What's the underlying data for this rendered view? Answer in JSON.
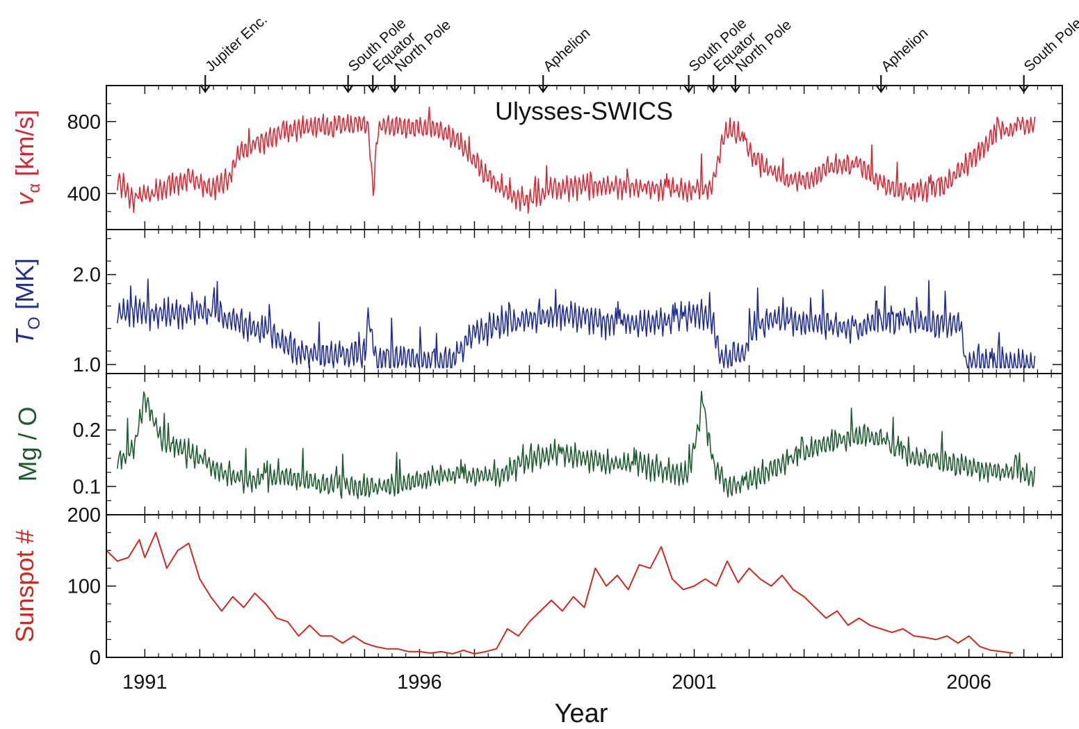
{
  "figure": {
    "instrument_label": "Ulysses-SWICS",
    "xlabel": "Year",
    "x_ticks": [
      1991,
      1996,
      2001,
      2006
    ],
    "x_range": [
      1990.3,
      2007.7
    ],
    "colors": {
      "alpha_speed": "#d42a35",
      "oxygen_temperature": "#1f2d8f",
      "mg_o_ratio": "#1e5a30",
      "sunspot": "#cc2a1e",
      "axes": "#111111"
    },
    "events": [
      {
        "label": "Jupiter Enc.",
        "year": 1992.1
      },
      {
        "label": "South Pole",
        "year": 1994.7
      },
      {
        "label": "Equator",
        "year": 1995.15
      },
      {
        "label": "North Pole",
        "year": 1995.55
      },
      {
        "label": "Aphelion",
        "year": 1998.25
      },
      {
        "label": "South Pole",
        "year": 2000.9
      },
      {
        "label": "Equator",
        "year": 2001.35
      },
      {
        "label": "North Pole",
        "year": 2001.75
      },
      {
        "label": "Aphelion",
        "year": 2004.4
      },
      {
        "label": "South Pole",
        "year": 2007.0
      }
    ]
  },
  "chart_data": [
    {
      "type": "line",
      "ylabel_main": "v",
      "ylabel_sub": "α",
      "ylabel_unit": " [km/s]",
      "ylim": [
        200,
        1000
      ],
      "y_ticks": [
        400,
        800
      ],
      "color": "#d42a35",
      "noise": [
        60,
        100
      ],
      "x": [
        1990.5,
        1990.8,
        1991.5,
        1991.8,
        1992.0,
        1992.2,
        1992.5,
        1992.7,
        1993.2,
        1993.8,
        1994.5,
        1995.0,
        1995.08,
        1995.15,
        1995.25,
        1995.35,
        1995.5,
        1996.0,
        1996.3,
        1996.7,
        1997.1,
        1997.6,
        1997.9,
        1998.1,
        1998.4,
        1999.0,
        1999.8,
        2000.5,
        2001.0,
        2001.3,
        2001.55,
        2001.65,
        2001.9,
        2002.1,
        2002.5,
        2003.0,
        2003.5,
        2004.0,
        2004.5,
        2005.0,
        2005.5,
        2006.0,
        2006.5,
        2007.0,
        2007.2
      ],
      "y": [
        480,
        360,
        450,
        480,
        460,
        420,
        470,
        620,
        700,
        760,
        780,
        790,
        760,
        400,
        760,
        790,
        780,
        760,
        760,
        700,
        540,
        400,
        360,
        370,
        430,
        440,
        440,
        430,
        420,
        430,
        720,
        760,
        700,
        600,
        500,
        460,
        550,
        560,
        430,
        410,
        430,
        580,
        740,
        770,
        780
      ]
    },
    {
      "type": "line",
      "ylabel_main": "T",
      "ylabel_sub": "O",
      "ylabel_unit": " [MK]",
      "ylim": [
        0.9,
        2.5
      ],
      "y_ticks": [
        1.0,
        2.0
      ],
      "color": "#1f2d8f",
      "noise": [
        0.15,
        0.3
      ],
      "x": [
        1990.5,
        1991.0,
        1991.5,
        1992.0,
        1992.3,
        1992.8,
        1993.3,
        1993.8,
        1994.1,
        1994.5,
        1995.0,
        1995.08,
        1995.2,
        1995.5,
        1996.0,
        1996.3,
        1996.6,
        1997.0,
        1997.5,
        1998.0,
        1998.6,
        1999.2,
        2000.0,
        2000.6,
        2001.0,
        2001.3,
        2001.5,
        2001.9,
        2002.1,
        2002.5,
        2003.2,
        2003.8,
        2004.3,
        2004.8,
        2005.3,
        2005.85,
        2005.95,
        2006.5,
        2007.2
      ],
      "y": [
        1.55,
        1.6,
        1.55,
        1.6,
        1.55,
        1.45,
        1.35,
        1.15,
        1.1,
        1.11,
        1.12,
        1.55,
        1.05,
        1.06,
        1.05,
        1.02,
        1.05,
        1.35,
        1.45,
        1.5,
        1.55,
        1.5,
        1.45,
        1.5,
        1.55,
        1.55,
        1.05,
        1.1,
        1.45,
        1.5,
        1.45,
        1.4,
        1.45,
        1.5,
        1.45,
        1.45,
        1.0,
        1.02,
        1.0
      ]
    },
    {
      "type": "line",
      "ylabel_main": "Mg / O",
      "ylim": [
        0.05,
        0.3
      ],
      "y_ticks": [
        0.1,
        0.2
      ],
      "color": "#1e5a30",
      "noise": [
        0.02,
        0.04
      ],
      "x": [
        1990.5,
        1990.8,
        1991.0,
        1991.3,
        1992.0,
        1992.5,
        1993.0,
        1993.5,
        1994.0,
        1994.5,
        1995.0,
        1995.5,
        1996.0,
        1996.5,
        1997.0,
        1997.5,
        1998.0,
        1998.5,
        1999.0,
        1999.5,
        2000.0,
        2000.5,
        2000.9,
        2001.15,
        2001.35,
        2001.6,
        2001.85,
        2002.2,
        2002.8,
        2003.5,
        2004.2,
        2005.0,
        2005.7,
        2006.2,
        2007.2
      ],
      "y": [
        0.14,
        0.17,
        0.26,
        0.18,
        0.15,
        0.12,
        0.11,
        0.12,
        0.11,
        0.1,
        0.1,
        0.1,
        0.11,
        0.12,
        0.12,
        0.12,
        0.15,
        0.16,
        0.15,
        0.14,
        0.14,
        0.13,
        0.12,
        0.25,
        0.14,
        0.1,
        0.1,
        0.12,
        0.15,
        0.18,
        0.19,
        0.15,
        0.14,
        0.13,
        0.12
      ]
    },
    {
      "type": "line",
      "ylabel_main": "Sunspot #",
      "ylim": [
        0,
        200
      ],
      "y_ticks": [
        0,
        100,
        200
      ],
      "color": "#cc2a1e",
      "noise": [
        0,
        0
      ],
      "x": [
        1990.3,
        1990.5,
        1990.7,
        1990.9,
        1991.0,
        1991.2,
        1991.4,
        1991.6,
        1991.8,
        1992.0,
        1992.2,
        1992.4,
        1992.6,
        1992.8,
        1993.0,
        1993.2,
        1993.4,
        1993.6,
        1993.8,
        1994.0,
        1994.2,
        1994.4,
        1994.6,
        1994.8,
        1995.0,
        1995.2,
        1995.4,
        1995.6,
        1995.8,
        1996.0,
        1996.2,
        1996.4,
        1996.6,
        1996.8,
        1997.0,
        1997.2,
        1997.4,
        1997.6,
        1997.8,
        1998.0,
        1998.2,
        1998.4,
        1998.6,
        1998.8,
        1999.0,
        1999.2,
        1999.4,
        1999.6,
        1999.8,
        2000.0,
        2000.2,
        2000.4,
        2000.6,
        2000.8,
        2001.0,
        2001.2,
        2001.4,
        2001.6,
        2001.8,
        2002.0,
        2002.2,
        2002.4,
        2002.6,
        2002.8,
        2003.0,
        2003.2,
        2003.4,
        2003.6,
        2003.8,
        2004.0,
        2004.2,
        2004.4,
        2004.6,
        2004.8,
        2005.0,
        2005.2,
        2005.4,
        2005.6,
        2005.8,
        2006.0,
        2006.2,
        2006.4,
        2006.6,
        2006.8
      ],
      "y": [
        150,
        135,
        140,
        165,
        140,
        175,
        125,
        150,
        160,
        110,
        85,
        65,
        85,
        70,
        90,
        75,
        55,
        50,
        30,
        45,
        30,
        30,
        20,
        30,
        20,
        15,
        12,
        12,
        8,
        8,
        6,
        8,
        5,
        10,
        5,
        8,
        12,
        40,
        30,
        50,
        65,
        80,
        65,
        85,
        70,
        125,
        100,
        115,
        95,
        130,
        125,
        155,
        110,
        95,
        100,
        110,
        100,
        135,
        105,
        125,
        110,
        100,
        115,
        95,
        85,
        70,
        55,
        65,
        45,
        55,
        45,
        40,
        35,
        40,
        30,
        28,
        25,
        30,
        20,
        30,
        15,
        10,
        8,
        6
      ]
    }
  ]
}
